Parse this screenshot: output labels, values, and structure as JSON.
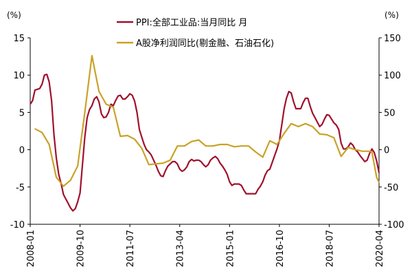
{
  "chart_data": {
    "type": "line",
    "left_unit": "(%)",
    "right_unit": "(%)",
    "x_ticks": [
      "2008-01",
      "2009-10",
      "2011-07",
      "2013-04",
      "2015-01",
      "2016-10",
      "2018-07",
      "2020-04"
    ],
    "left_axis": {
      "ylim": [
        -10,
        15
      ],
      "ticks": [
        "-10",
        "-5",
        "0",
        "5",
        "10",
        "15"
      ]
    },
    "right_axis": {
      "ylim": [
        -100,
        150
      ],
      "ticks": [
        "-100",
        "-50",
        "0",
        "50",
        "100",
        "150"
      ]
    },
    "grid": false,
    "legend_position": "top-center",
    "series": [
      {
        "name": "PPI:全部工业品:当月同比  月",
        "axis": "left",
        "color": "#a0102c",
        "points": [
          [
            "2008-01",
            6.1
          ],
          [
            "2008-02",
            6.6
          ],
          [
            "2008-03",
            8.0
          ],
          [
            "2008-04",
            8.1
          ],
          [
            "2008-05",
            8.2
          ],
          [
            "2008-06",
            8.8
          ],
          [
            "2008-07",
            10.0
          ],
          [
            "2008-08",
            10.1
          ],
          [
            "2008-09",
            9.1
          ],
          [
            "2008-10",
            6.6
          ],
          [
            "2008-11",
            2.0
          ],
          [
            "2008-12",
            -1.1
          ],
          [
            "2009-01",
            -3.3
          ],
          [
            "2009-02",
            -4.5
          ],
          [
            "2009-03",
            -6.0
          ],
          [
            "2009-04",
            -6.6
          ],
          [
            "2009-05",
            -7.2
          ],
          [
            "2009-06",
            -7.8
          ],
          [
            "2009-07",
            -8.2
          ],
          [
            "2009-08",
            -7.9
          ],
          [
            "2009-09",
            -7.0
          ],
          [
            "2009-10",
            -5.8
          ],
          [
            "2009-11",
            -2.1
          ],
          [
            "2009-12",
            1.7
          ],
          [
            "2010-01",
            4.3
          ],
          [
            "2010-02",
            5.4
          ],
          [
            "2010-03",
            5.9
          ],
          [
            "2010-04",
            6.8
          ],
          [
            "2010-05",
            7.1
          ],
          [
            "2010-06",
            6.4
          ],
          [
            "2010-07",
            4.8
          ],
          [
            "2010-08",
            4.3
          ],
          [
            "2010-09",
            4.4
          ],
          [
            "2010-10",
            5.0
          ],
          [
            "2010-11",
            6.1
          ],
          [
            "2010-12",
            5.9
          ],
          [
            "2011-01",
            6.6
          ],
          [
            "2011-02",
            7.2
          ],
          [
            "2011-03",
            7.3
          ],
          [
            "2011-04",
            6.8
          ],
          [
            "2011-05",
            6.8
          ],
          [
            "2011-06",
            7.1
          ],
          [
            "2011-07",
            7.5
          ],
          [
            "2011-08",
            7.3
          ],
          [
            "2011-09",
            6.5
          ],
          [
            "2011-10",
            5.0
          ],
          [
            "2011-11",
            2.7
          ],
          [
            "2011-12",
            1.7
          ],
          [
            "2012-01",
            0.7
          ],
          [
            "2012-02",
            0.0
          ],
          [
            "2012-03",
            -0.3
          ],
          [
            "2012-04",
            -0.7
          ],
          [
            "2012-05",
            -1.4
          ],
          [
            "2012-06",
            -2.1
          ],
          [
            "2012-07",
            -2.9
          ],
          [
            "2012-08",
            -3.5
          ],
          [
            "2012-09",
            -3.6
          ],
          [
            "2012-10",
            -2.8
          ],
          [
            "2012-11",
            -2.2
          ],
          [
            "2012-12",
            -1.9
          ],
          [
            "2013-01",
            -1.6
          ],
          [
            "2013-02",
            -1.6
          ],
          [
            "2013-03",
            -1.9
          ],
          [
            "2013-04",
            -2.6
          ],
          [
            "2013-05",
            -2.9
          ],
          [
            "2013-06",
            -2.7
          ],
          [
            "2013-07",
            -2.3
          ],
          [
            "2013-08",
            -1.6
          ],
          [
            "2013-09",
            -1.3
          ],
          [
            "2013-10",
            -1.5
          ],
          [
            "2013-11",
            -1.4
          ],
          [
            "2013-12",
            -1.4
          ],
          [
            "2014-01",
            -1.6
          ],
          [
            "2014-02",
            -2.0
          ],
          [
            "2014-03",
            -2.3
          ],
          [
            "2014-04",
            -2.0
          ],
          [
            "2014-05",
            -1.4
          ],
          [
            "2014-06",
            -1.1
          ],
          [
            "2014-07",
            -0.9
          ],
          [
            "2014-08",
            -1.2
          ],
          [
            "2014-09",
            -1.8
          ],
          [
            "2014-10",
            -2.2
          ],
          [
            "2014-11",
            -2.7
          ],
          [
            "2014-12",
            -3.3
          ],
          [
            "2015-01",
            -4.3
          ],
          [
            "2015-02",
            -4.8
          ],
          [
            "2015-03",
            -4.6
          ],
          [
            "2015-04",
            -4.6
          ],
          [
            "2015-05",
            -4.6
          ],
          [
            "2015-06",
            -4.8
          ],
          [
            "2015-07",
            -5.4
          ],
          [
            "2015-08",
            -5.9
          ],
          [
            "2015-09",
            -5.9
          ],
          [
            "2015-10",
            -5.9
          ],
          [
            "2015-11",
            -5.9
          ],
          [
            "2015-12",
            -5.9
          ],
          [
            "2016-01",
            -5.3
          ],
          [
            "2016-02",
            -4.9
          ],
          [
            "2016-03",
            -4.3
          ],
          [
            "2016-04",
            -3.4
          ],
          [
            "2016-05",
            -2.8
          ],
          [
            "2016-06",
            -2.6
          ],
          [
            "2016-07",
            -1.7
          ],
          [
            "2016-08",
            -0.8
          ],
          [
            "2016-09",
            0.1
          ],
          [
            "2016-10",
            1.2
          ],
          [
            "2016-11",
            3.3
          ],
          [
            "2016-12",
            5.5
          ],
          [
            "2017-01",
            6.9
          ],
          [
            "2017-02",
            7.8
          ],
          [
            "2017-03",
            7.6
          ],
          [
            "2017-04",
            6.4
          ],
          [
            "2017-05",
            5.5
          ],
          [
            "2017-06",
            5.5
          ],
          [
            "2017-07",
            5.5
          ],
          [
            "2017-08",
            6.3
          ],
          [
            "2017-09",
            6.9
          ],
          [
            "2017-10",
            6.9
          ],
          [
            "2017-11",
            5.8
          ],
          [
            "2017-12",
            4.9
          ],
          [
            "2018-01",
            4.3
          ],
          [
            "2018-02",
            3.7
          ],
          [
            "2018-03",
            3.1
          ],
          [
            "2018-04",
            3.4
          ],
          [
            "2018-05",
            4.1
          ],
          [
            "2018-06",
            4.7
          ],
          [
            "2018-07",
            4.6
          ],
          [
            "2018-08",
            4.1
          ],
          [
            "2018-09",
            3.6
          ],
          [
            "2018-10",
            3.3
          ],
          [
            "2018-11",
            2.7
          ],
          [
            "2018-12",
            0.9
          ],
          [
            "2019-01",
            0.1
          ],
          [
            "2019-02",
            0.1
          ],
          [
            "2019-03",
            0.4
          ],
          [
            "2019-04",
            0.9
          ],
          [
            "2019-05",
            0.6
          ],
          [
            "2019-06",
            0.0
          ],
          [
            "2019-07",
            -0.3
          ],
          [
            "2019-08",
            -0.8
          ],
          [
            "2019-09",
            -1.2
          ],
          [
            "2019-10",
            -1.6
          ],
          [
            "2019-11",
            -1.4
          ],
          [
            "2019-12",
            -0.5
          ],
          [
            "2020-01",
            0.1
          ],
          [
            "2020-02",
            -0.4
          ],
          [
            "2020-03",
            -1.5
          ],
          [
            "2020-04",
            -3.1
          ]
        ]
      },
      {
        "name": "A股净利润同比(剔金融、石油石化)",
        "axis": "right",
        "color": "#c9a227",
        "points": [
          [
            "2008-03",
            28
          ],
          [
            "2008-06",
            23
          ],
          [
            "2008-09",
            7
          ],
          [
            "2008-12",
            -37
          ],
          [
            "2009-03",
            -49
          ],
          [
            "2009-06",
            -41
          ],
          [
            "2009-09",
            -22
          ],
          [
            "2009-12",
            50
          ],
          [
            "2010-03",
            126
          ],
          [
            "2010-06",
            78
          ],
          [
            "2010-09",
            61
          ],
          [
            "2010-12",
            57
          ],
          [
            "2011-03",
            18
          ],
          [
            "2011-06",
            19
          ],
          [
            "2011-09",
            14
          ],
          [
            "2011-12",
            2
          ],
          [
            "2012-03",
            -20
          ],
          [
            "2012-06",
            -19
          ],
          [
            "2012-09",
            -18
          ],
          [
            "2012-12",
            -14
          ],
          [
            "2013-03",
            5
          ],
          [
            "2013-06",
            5
          ],
          [
            "2013-09",
            11
          ],
          [
            "2013-12",
            13
          ],
          [
            "2014-03",
            5
          ],
          [
            "2014-06",
            5
          ],
          [
            "2014-09",
            7
          ],
          [
            "2014-12",
            7
          ],
          [
            "2015-03",
            4
          ],
          [
            "2015-06",
            5
          ],
          [
            "2015-09",
            5
          ],
          [
            "2015-12",
            -3
          ],
          [
            "2016-03",
            -10
          ],
          [
            "2016-06",
            12
          ],
          [
            "2016-09",
            7
          ],
          [
            "2016-12",
            22
          ],
          [
            "2017-03",
            35
          ],
          [
            "2017-06",
            31
          ],
          [
            "2017-09",
            35
          ],
          [
            "2017-12",
            31
          ],
          [
            "2018-03",
            21
          ],
          [
            "2018-06",
            20
          ],
          [
            "2018-09",
            16
          ],
          [
            "2018-12",
            -9
          ],
          [
            "2019-03",
            3
          ],
          [
            "2019-06",
            0
          ],
          [
            "2019-09",
            -2
          ],
          [
            "2019-12",
            -2
          ],
          [
            "2020-01",
            -3
          ],
          [
            "2020-02",
            -20
          ],
          [
            "2020-03",
            -37
          ],
          [
            "2020-04",
            -44
          ]
        ]
      }
    ]
  }
}
